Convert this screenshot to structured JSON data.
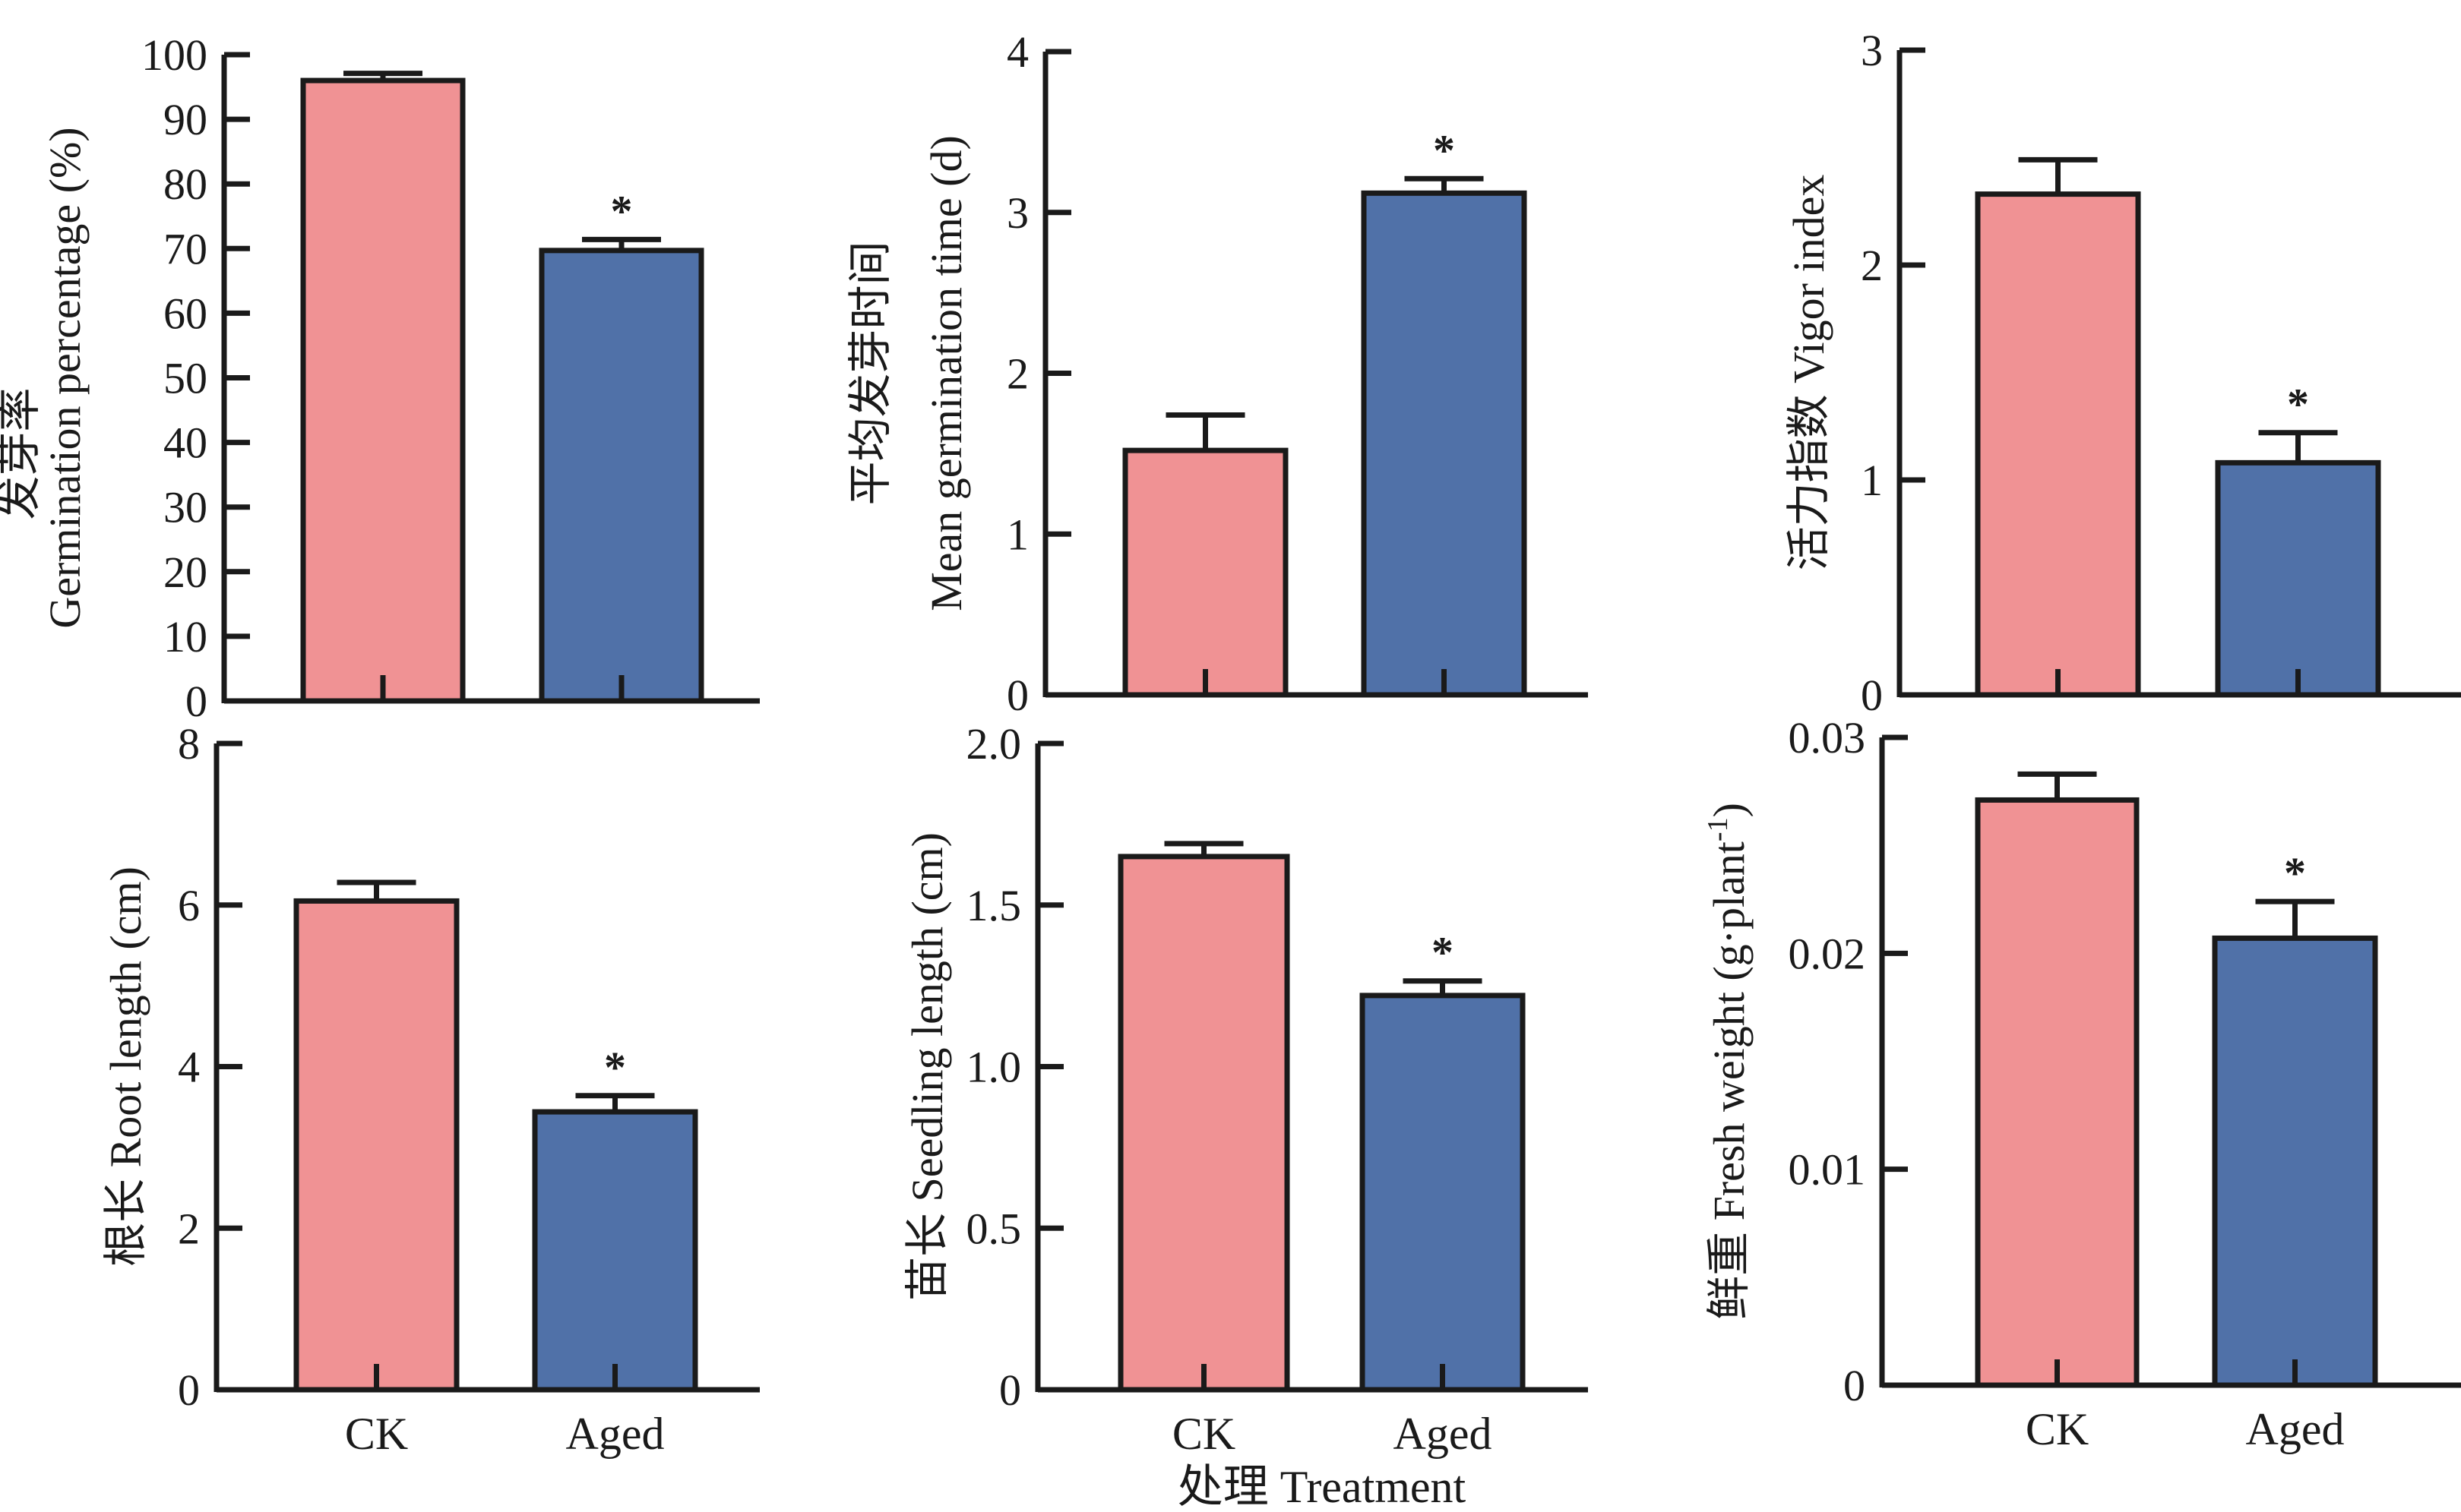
{
  "chart_data": [
    {
      "type": "bar",
      "id": "germination-percentage",
      "ylabel_cn": "发芽率",
      "ylabel": "Germination percentage (%)",
      "categories": [
        "CK",
        "Aged"
      ],
      "values": [
        96.0,
        69.7
      ],
      "errors": [
        1.1,
        1.7
      ],
      "significance": [
        "",
        "*"
      ],
      "ylim": [
        0,
        100
      ],
      "yticks": [
        0,
        10,
        20,
        30,
        40,
        50,
        60,
        70,
        80,
        90,
        100
      ],
      "ytick_labels": [
        "0",
        "10",
        "20",
        "30",
        "40",
        "50",
        "60",
        "70",
        "80",
        "90",
        "100"
      ],
      "show_xticklabels": false
    },
    {
      "type": "bar",
      "id": "mean-germination-time",
      "ylabel_cn": "平均发芽时间",
      "ylabel": "Mean germination time (d)",
      "categories": [
        "CK",
        "Aged"
      ],
      "values": [
        1.52,
        3.12
      ],
      "errors": [
        0.22,
        0.09
      ],
      "significance": [
        "",
        "*"
      ],
      "ylim": [
        0,
        4
      ],
      "yticks": [
        0,
        1,
        2,
        3,
        4
      ],
      "ytick_labels": [
        "0",
        "1",
        "2",
        "3",
        "4"
      ],
      "show_xticklabels": false
    },
    {
      "type": "bar",
      "id": "vigor-index",
      "ylabel_cn": "活力指数",
      "ylabel": "Vigor index",
      "categories": [
        "CK",
        "Aged"
      ],
      "values": [
        2.33,
        1.08
      ],
      "errors": [
        0.16,
        0.14
      ],
      "significance": [
        "",
        "*"
      ],
      "ylim": [
        0,
        3
      ],
      "yticks": [
        0,
        1,
        2,
        3
      ],
      "ytick_labels": [
        "0",
        "1",
        "2",
        "3"
      ],
      "show_xticklabels": false
    },
    {
      "type": "bar",
      "id": "root-length",
      "ylabel_cn": "根长",
      "ylabel": "Root length (cm)",
      "categories": [
        "CK",
        "Aged"
      ],
      "values": [
        6.05,
        3.44
      ],
      "errors": [
        0.23,
        0.2
      ],
      "significance": [
        "",
        "*"
      ],
      "ylim": [
        0,
        8
      ],
      "yticks": [
        0,
        2,
        4,
        6,
        8
      ],
      "ytick_labels": [
        "0",
        "2",
        "4",
        "6",
        "8"
      ],
      "show_xticklabels": true
    },
    {
      "type": "bar",
      "id": "seedling-length",
      "ylabel_cn": "苗长",
      "ylabel": "Seedling length (cm)",
      "categories": [
        "CK",
        "Aged"
      ],
      "values": [
        1.65,
        1.22
      ],
      "errors": [
        0.04,
        0.045
      ],
      "significance": [
        "",
        "*"
      ],
      "ylim": [
        0,
        2.0
      ],
      "yticks": [
        0,
        0.5,
        1.0,
        1.5,
        2.0
      ],
      "ytick_labels": [
        "0",
        "0.5",
        "1.0",
        "1.5",
        "2.0"
      ],
      "show_xticklabels": true,
      "xlabel": "处理 Treatment"
    },
    {
      "type": "bar",
      "id": "fresh-weight",
      "ylabel_cn": "鲜重",
      "ylabel": "Fresh weight (g·plant",
      "ylabel_sup": "-1",
      "ylabel_end": ")",
      "categories": [
        "CK",
        "Aged"
      ],
      "values": [
        0.0271,
        0.0207
      ],
      "errors": [
        0.0012,
        0.0017
      ],
      "significance": [
        "",
        "*"
      ],
      "ylim": [
        0,
        0.03
      ],
      "yticks": [
        0,
        0.01,
        0.02,
        0.03
      ],
      "ytick_labels": [
        "0",
        "0.01",
        "0.02",
        "0.03"
      ],
      "show_xticklabels": true
    }
  ],
  "colors": {
    "CK": "#f09294",
    "Aged": "#5071a8",
    "axis": "#1a1a1a"
  }
}
